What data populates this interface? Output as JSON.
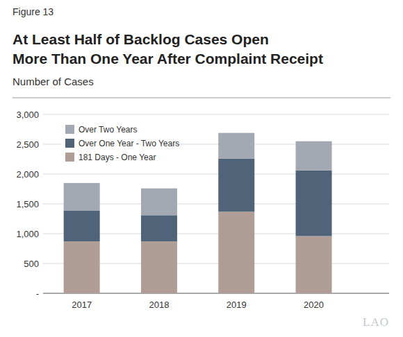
{
  "chart_data": {
    "type": "bar",
    "stacked": true,
    "figure_label": "Figure 13",
    "title": "At Least Half of Backlog Cases Open\nMore Than One Year After Complaint Receipt",
    "subtitle": "Number of Cases",
    "logo": "LAO",
    "categories": [
      "2017",
      "2018",
      "2019",
      "2020"
    ],
    "series": [
      {
        "name": "181 Days - One Year",
        "color": "#b09e96",
        "values": [
          870,
          870,
          1370,
          960
        ]
      },
      {
        "name": "Over One Year - Two Years",
        "color": "#4f6478",
        "values": [
          520,
          440,
          890,
          1100
        ]
      },
      {
        "name": "Over Two Years",
        "color": "#a3a9b3",
        "values": [
          460,
          450,
          430,
          490
        ]
      }
    ],
    "ylim": [
      0,
      3000
    ],
    "yticks": [
      {
        "value": 0,
        "label": "-"
      },
      500,
      {
        "value": 1000,
        "label": "1,000"
      },
      {
        "value": 1500,
        "label": "1,500"
      },
      {
        "value": 2000,
        "label": "2,000"
      },
      {
        "value": 2500,
        "label": "2,500"
      },
      {
        "value": 3000,
        "label": "3,000"
      }
    ],
    "grid": true,
    "legend": "upper left"
  }
}
